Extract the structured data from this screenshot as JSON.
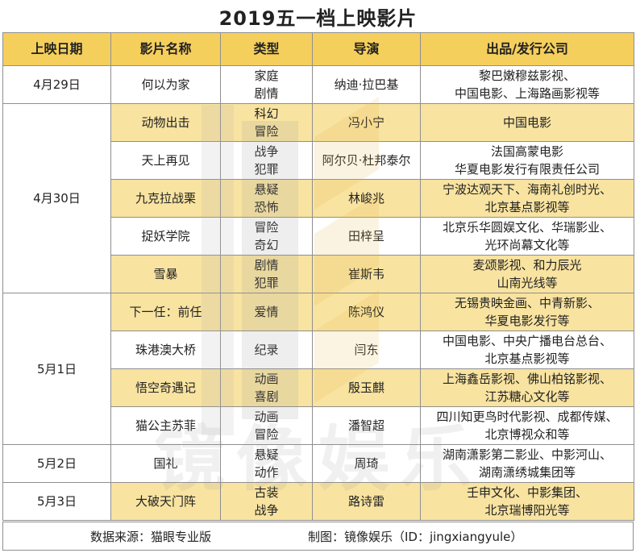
{
  "title": "2019五一档上映影片",
  "headers": [
    "上映日期",
    "影片名称",
    "类型",
    "导演",
    "出品/发行公司"
  ],
  "groups": [
    {
      "date": "4月29日",
      "films": [
        {
          "name": "何以为家",
          "genre": [
            "家庭",
            "剧情"
          ],
          "director": "纳迪·拉巴基",
          "company": [
            "黎巴嫩穆兹影视、",
            "中国电影、上海路画影视等"
          ]
        }
      ]
    },
    {
      "date": "4月30日",
      "films": [
        {
          "name": "动物出击",
          "genre": [
            "科幻",
            "冒险"
          ],
          "director": "冯小宁",
          "company": [
            "中国电影"
          ]
        },
        {
          "name": "天上再见",
          "genre": [
            "战争",
            "犯罪"
          ],
          "director": "阿尔贝·杜邦泰尔",
          "company": [
            "法国高蒙电影",
            "华夏电影发行有限责任公司"
          ]
        },
        {
          "name": "九克拉战栗",
          "genre": [
            "悬疑",
            "恐怖"
          ],
          "director": "林峻兆",
          "company": [
            "宁波达观天下、海南礼创时光、",
            "北京基点影视等"
          ]
        },
        {
          "name": "捉妖学院",
          "genre": [
            "冒险",
            "奇幻"
          ],
          "director": "田梓呈",
          "company": [
            "北京乐华圆娱文化、华瑞影业、",
            "光环尚幕文化等"
          ]
        },
        {
          "name": "雪暴",
          "genre": [
            "剧情",
            "犯罪"
          ],
          "director": "崔斯韦",
          "company": [
            "麦颂影视、和力辰光",
            "山南光线等"
          ]
        }
      ]
    },
    {
      "date": "5月1日",
      "films": [
        {
          "name": "下一任：前任",
          "genre": [
            "爱情"
          ],
          "director": "陈鸿仪",
          "company": [
            "无锡贵映金画、中青新影、",
            "华夏电影发行等"
          ]
        },
        {
          "name": "珠港澳大桥",
          "genre": [
            "纪录"
          ],
          "director": "闫东",
          "company": [
            "中国电影、中央广播电台总台、",
            "北京基点影视等"
          ]
        },
        {
          "name": "悟空奇遇记",
          "genre": [
            "动画",
            "喜剧"
          ],
          "director": "殷玉麒",
          "company": [
            "上海鑫岳影视、佛山柏铭影视、",
            "江苏糖心文化等"
          ]
        },
        {
          "name": "猫公主苏菲",
          "genre": [
            "动画",
            "冒险"
          ],
          "director": "潘智超",
          "company": [
            "四川知更鸟时代影视、成都传媒、",
            "北京博视众和等"
          ]
        }
      ]
    },
    {
      "date": "5月2日",
      "films": [
        {
          "name": "国礼",
          "genre": [
            "悬疑",
            "动作"
          ],
          "director": "周琦",
          "company": [
            "湖南潇影第二影业、中影河山、",
            "湖南潇绣城集团等"
          ]
        }
      ]
    },
    {
      "date": "5月3日",
      "films": [
        {
          "name": "大破天门阵",
          "genre": [
            "古装",
            "战争"
          ],
          "director": "路诗雷",
          "company": [
            "壬申文化、中影集团、",
            "北京瑞博阳光等"
          ]
        }
      ]
    }
  ],
  "footer": {
    "source": "数据来源：猫眼专业版",
    "credit": "制图：镜像娱乐（ID：jingxiangyule）"
  },
  "watermark": {
    "text": "镜像娱乐"
  },
  "colors": {
    "header": "#f5cf5c",
    "highlight": "#f8e3a0",
    "border": "#8f8f8f"
  }
}
